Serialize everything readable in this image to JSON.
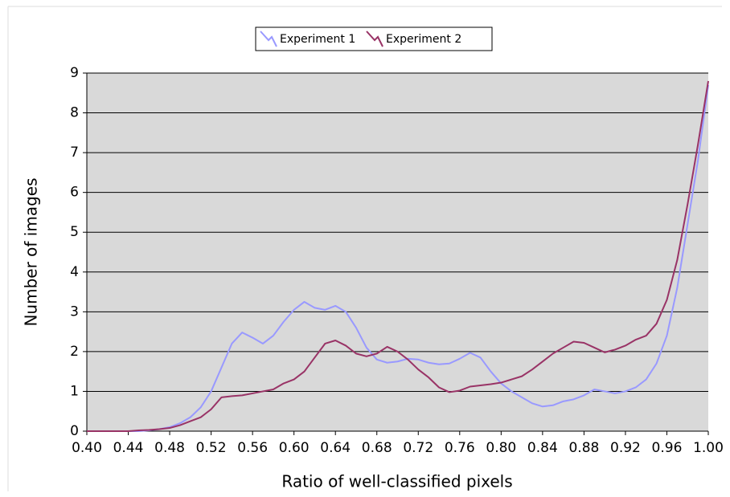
{
  "chart_data": {
    "type": "line",
    "xlabel": "Ratio of well-classified pixels",
    "ylabel": "Number of images",
    "x": [
      0.4,
      0.41,
      0.42,
      0.43,
      0.44,
      0.45,
      0.46,
      0.47,
      0.48,
      0.49,
      0.5,
      0.51,
      0.52,
      0.53,
      0.54,
      0.55,
      0.56,
      0.57,
      0.58,
      0.59,
      0.6,
      0.61,
      0.62,
      0.63,
      0.64,
      0.65,
      0.66,
      0.67,
      0.68,
      0.69,
      0.7,
      0.71,
      0.72,
      0.73,
      0.74,
      0.75,
      0.76,
      0.77,
      0.78,
      0.79,
      0.8,
      0.81,
      0.82,
      0.83,
      0.84,
      0.85,
      0.86,
      0.87,
      0.88,
      0.89,
      0.9,
      0.91,
      0.92,
      0.93,
      0.94,
      0.95,
      0.96,
      0.97,
      0.98,
      0.99,
      1.0
    ],
    "series": [
      {
        "name": "Experiment 1",
        "color": "#9999ff",
        "values": [
          0,
          0,
          0,
          0,
          0,
          0,
          0.02,
          0.05,
          0.1,
          0.2,
          0.35,
          0.6,
          1.0,
          1.6,
          2.2,
          2.48,
          2.35,
          2.2,
          2.4,
          2.75,
          3.05,
          3.25,
          3.1,
          3.05,
          3.15,
          3.0,
          2.6,
          2.1,
          1.8,
          1.72,
          1.75,
          1.82,
          1.8,
          1.72,
          1.68,
          1.7,
          1.82,
          1.97,
          1.85,
          1.5,
          1.2,
          1.0,
          0.85,
          0.7,
          0.62,
          0.65,
          0.75,
          0.8,
          0.9,
          1.05,
          1.0,
          0.95,
          1.0,
          1.1,
          1.3,
          1.7,
          2.4,
          3.6,
          5.2,
          6.8,
          8.7
        ]
      },
      {
        "name": "Experiment 2",
        "color": "#993366",
        "values": [
          0,
          0,
          0,
          0,
          0,
          0.02,
          0.03,
          0.05,
          0.08,
          0.15,
          0.25,
          0.35,
          0.55,
          0.85,
          0.88,
          0.9,
          0.95,
          1.0,
          1.05,
          1.2,
          1.3,
          1.5,
          1.85,
          2.2,
          2.28,
          2.15,
          1.95,
          1.88,
          1.95,
          2.12,
          2.0,
          1.8,
          1.55,
          1.35,
          1.1,
          0.98,
          1.02,
          1.12,
          1.15,
          1.18,
          1.22,
          1.3,
          1.38,
          1.55,
          1.75,
          1.95,
          2.1,
          2.25,
          2.22,
          2.1,
          1.98,
          2.05,
          2.15,
          2.3,
          2.4,
          2.7,
          3.3,
          4.3,
          5.7,
          7.2,
          8.8
        ]
      }
    ],
    "xlim": [
      0.4,
      1.0
    ],
    "xticks": [
      {
        "value": 0.4,
        "label": "0.40"
      },
      {
        "value": 0.44,
        "label": "0.44"
      },
      {
        "value": 0.48,
        "label": "0.48"
      },
      {
        "value": 0.52,
        "label": "0.52"
      },
      {
        "value": 0.56,
        "label": "0.56"
      },
      {
        "value": 0.6,
        "label": "0.60"
      },
      {
        "value": 0.64,
        "label": "0.64"
      },
      {
        "value": 0.68,
        "label": "0.68"
      },
      {
        "value": 0.72,
        "label": "0.72"
      },
      {
        "value": 0.76,
        "label": "0.76"
      },
      {
        "value": 0.8,
        "label": "0.80"
      },
      {
        "value": 0.84,
        "label": "0.84"
      },
      {
        "value": 0.88,
        "label": "0.88"
      },
      {
        "value": 0.92,
        "label": "0.92"
      },
      {
        "value": 0.96,
        "label": "0.96"
      },
      {
        "value": 1.0,
        "label": "1.00"
      }
    ],
    "ylim": [
      0,
      9
    ],
    "yticks": [
      0,
      1,
      2,
      3,
      4,
      5,
      6,
      7,
      8,
      9
    ],
    "grid": true,
    "legend": "top"
  }
}
